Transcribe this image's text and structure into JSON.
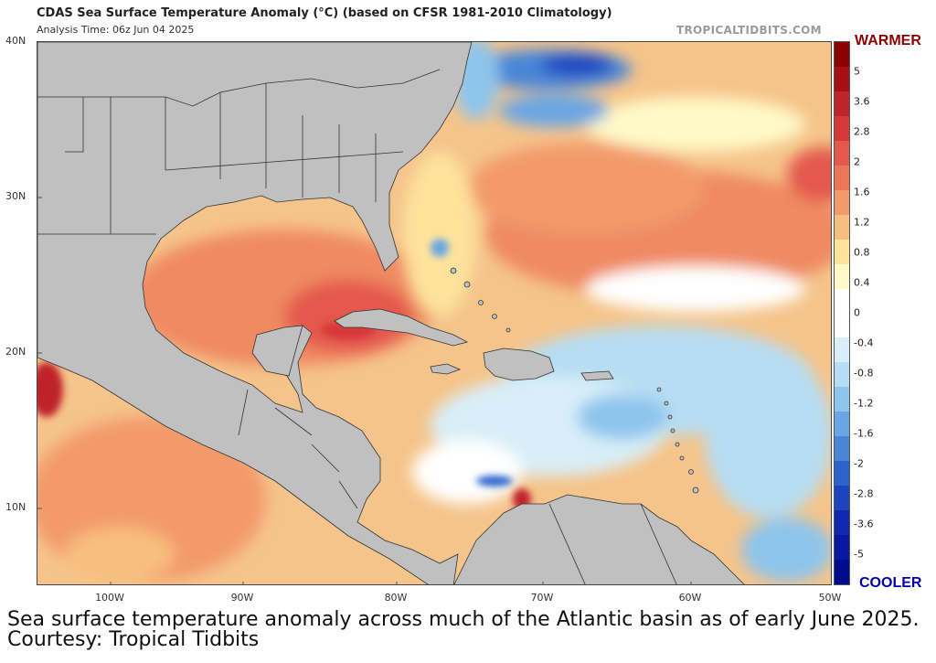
{
  "header": {
    "title": "CDAS Sea Surface Temperature Anomaly (°C) (based on CFSR 1981-2010 Climatology)",
    "analysis_time": "Analysis Time: 06z Jun 04 2025",
    "source": "TROPICALTIDBITS.COM"
  },
  "axes": {
    "lat_labels": [
      "40N",
      "30N",
      "20N",
      "10N"
    ],
    "lon_labels": [
      "100W",
      "90W",
      "80W",
      "70W",
      "60W",
      "50W"
    ]
  },
  "colorbar": {
    "top_label": "WARMER",
    "bottom_label": "COOLER",
    "ticks": [
      "5",
      "3.6",
      "2.8",
      "2",
      "1.6",
      "1.2",
      "0.8",
      "0.4",
      "0",
      "-0.4",
      "-0.8",
      "-1.2",
      "-1.6",
      "-2",
      "-2.8",
      "-3.6",
      "-5"
    ],
    "colors": [
      "#8b0000",
      "#a50f15",
      "#c0242b",
      "#d6393a",
      "#e4584d",
      "#ec7658",
      "#f39a6a",
      "#f8bd80",
      "#fde39c",
      "#fff9c8",
      "#ffffff",
      "#ffffff",
      "#d8eef8",
      "#b6ddf3",
      "#8ec5ec",
      "#6aa6e3",
      "#4a86d8",
      "#2f63cc",
      "#1d44bf",
      "#1029b0",
      "#0818a0",
      "#000c8c"
    ]
  },
  "palette": {
    "land": "#c0c0c0",
    "border": "#333333",
    "warm_base": "#f5c48a"
  },
  "caption": "Sea surface temperature anomaly across much of the Atlantic basin as of early June 2025. Courtesy: Tropical Tidbits"
}
